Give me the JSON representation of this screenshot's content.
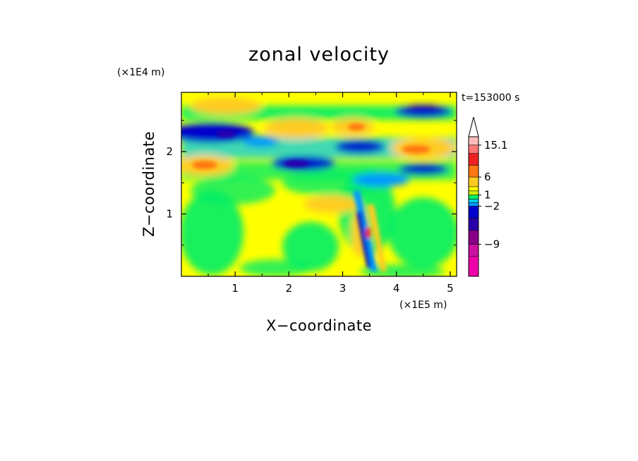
{
  "chart_data": {
    "type": "heatmap",
    "title": "zonal velocity",
    "xlabel": "X−coordinate",
    "ylabel": "Z−coordinate",
    "x_scale_label": "(×1E5 m)",
    "y_scale_label": "(×1E4 m)",
    "time_label": "t=153000 s",
    "xlim": [
      0,
      5.12
    ],
    "ylim": [
      0,
      2.95
    ],
    "x_ticks": [
      1,
      2,
      3,
      4,
      5
    ],
    "x_tick_labels": [
      "1",
      "2",
      "3",
      "4",
      "5"
    ],
    "y_ticks": [
      1,
      2
    ],
    "y_tick_labels": [
      "1",
      "2"
    ],
    "colorbar": {
      "levels": [
        -15.1,
        -12,
        -9,
        -6,
        -3.5,
        -2,
        -1,
        0,
        1,
        2,
        3.5,
        6,
        9,
        12,
        15.1
      ],
      "colors": [
        "#ee00aa",
        "#cc11a0",
        "#880088",
        "#2a00aa",
        "#0000cc",
        "#0099ff",
        "#00ccee",
        "#00ee66",
        "#ccee00",
        "#ffff00",
        "#ffcc22",
        "#ff7711",
        "#ee2222",
        "#ff7777",
        "#ffbbbb"
      ],
      "extend_top_color": "#ffffff",
      "tick_labels": [
        "15.1",
        "6",
        "1",
        "−2",
        "−9"
      ],
      "tick_values": [
        15.1,
        6,
        1,
        -2,
        -9
      ]
    },
    "field_description": "zonal velocity contours; alternating positive (yellow/orange) and negative (blue) bands aloft, wave pattern centred near x=3.5"
  }
}
